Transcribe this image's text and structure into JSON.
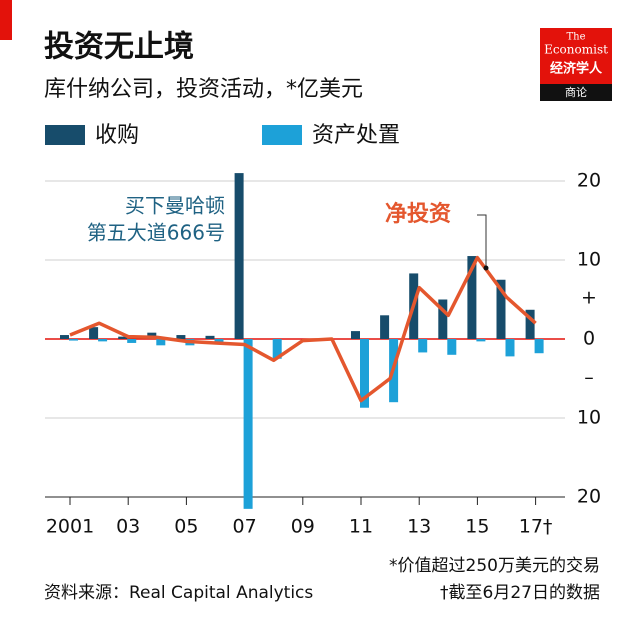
{
  "chart_data": {
    "type": "bar",
    "title": "投资无止境",
    "subtitle": "库什纳公司，投资活动，*亿美元",
    "categories": [
      "2001",
      null,
      "03",
      null,
      "05",
      null,
      "07",
      null,
      "09",
      null,
      "11",
      null,
      "13",
      null,
      "15",
      null,
      "17†"
    ],
    "series": [
      {
        "name": "收购",
        "color": "#174c6b",
        "values": [
          0.5,
          1.5,
          0.3,
          0.8,
          0.5,
          0.4,
          21,
          0,
          0,
          0,
          1,
          3,
          8.3,
          5,
          10.5,
          7.5,
          3.7
        ]
      },
      {
        "name": "资产处置",
        "color": "#1da1d8",
        "values": [
          -0.2,
          -0.3,
          -0.5,
          -0.8,
          -0.8,
          -0.4,
          -21.5,
          -2.5,
          -0.3,
          0,
          -8.7,
          -8,
          -1.7,
          -2,
          -0.3,
          -2.2,
          -1.8
        ]
      },
      {
        "name": "净投资",
        "type": "line",
        "color": "#e4572e",
        "values": [
          0.5,
          2,
          0.3,
          0.2,
          -0.3,
          -0.5,
          -0.7,
          -2.7,
          -0.2,
          0,
          -7.8,
          -5,
          6.5,
          3,
          10.3,
          5.3,
          2
        ]
      }
    ],
    "ylim": [
      -20,
      20
    ],
    "yticks": [
      {
        "value": -20,
        "label": "20"
      },
      {
        "value": -10,
        "label": "10"
      },
      0,
      10,
      20
    ],
    "axis_signs": [
      "+",
      "–"
    ],
    "grid": true,
    "annotations": [
      "买下曼哈顿",
      "第五大道666号"
    ],
    "footnotes": [
      "*价值超过250万美元的交易",
      "†截至6月27日的数据"
    ],
    "source": "资料来源：Real Capital Analytics",
    "brand": [
      "The",
      "Economist",
      "经济学人",
      "商论"
    ]
  }
}
